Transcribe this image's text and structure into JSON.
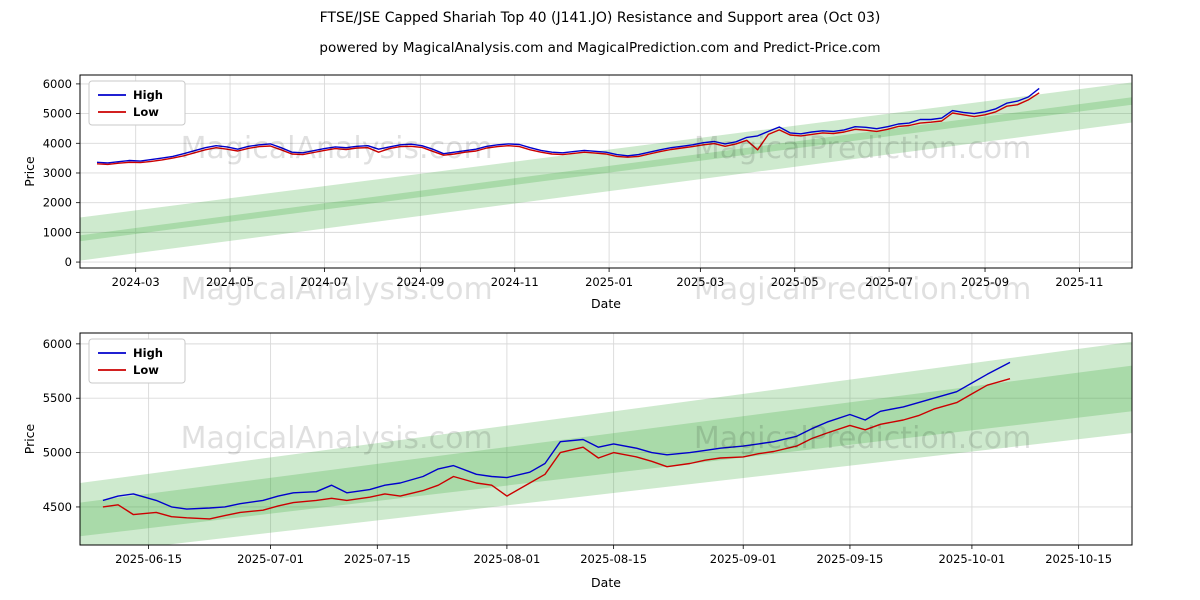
{
  "header": {
    "title": "FTSE/JSE Capped Shariah Top 40  (J141.JO) Resistance and Support area (Oct 03)",
    "subtitle": "powered by MagicalAnalysis.com and MagicalPrediction.com and Predict-Price.com"
  },
  "watermarks": {
    "text_a": "MagicalAnalysis.com",
    "text_b": "MagicalPrediction.com"
  },
  "colors": {
    "high_line": "#0000cc",
    "low_line": "#cc0000",
    "band_green": "rgba(60,170,60,0.25)",
    "grid": "#d9d9d9"
  },
  "chart_data": [
    {
      "type": "line",
      "title": "FTSE/JSE Capped Shariah Top 40  (J141.JO) Resistance and Support area (Oct 03)",
      "xlabel": "Date",
      "ylabel": "Price",
      "grid": true,
      "legend": {
        "position": "upper left",
        "entries": [
          "High",
          "Low"
        ]
      },
      "x_range": [
        "2024-01-25",
        "2025-12-05"
      ],
      "y_range": [
        -200,
        6300
      ],
      "x_ticks": {
        "dates": [
          "2024-03-01",
          "2024-05-01",
          "2024-07-01",
          "2024-09-01",
          "2024-11-01",
          "2025-01-01",
          "2025-03-01",
          "2025-05-01",
          "2025-07-01",
          "2025-09-01",
          "2025-11-01"
        ],
        "labels": [
          "2024-03",
          "2024-05",
          "2024-07",
          "2024-09",
          "2024-11",
          "2025-01",
          "2025-03",
          "2025-05",
          "2025-07",
          "2025-09",
          "2025-11"
        ]
      },
      "y_ticks": [
        0,
        1000,
        2000,
        3000,
        4000,
        5000,
        6000
      ],
      "dates": [
        "2024-02-05",
        "2024-02-12",
        "2024-02-19",
        "2024-02-26",
        "2024-03-04",
        "2024-03-11",
        "2024-03-18",
        "2024-03-25",
        "2024-04-01",
        "2024-04-08",
        "2024-04-15",
        "2024-04-22",
        "2024-04-29",
        "2024-05-06",
        "2024-05-13",
        "2024-05-20",
        "2024-05-27",
        "2024-06-03",
        "2024-06-10",
        "2024-06-17",
        "2024-06-24",
        "2024-07-01",
        "2024-07-08",
        "2024-07-15",
        "2024-07-22",
        "2024-07-29",
        "2024-08-05",
        "2024-08-12",
        "2024-08-19",
        "2024-08-26",
        "2024-09-02",
        "2024-09-09",
        "2024-09-16",
        "2024-09-23",
        "2024-09-30",
        "2024-10-07",
        "2024-10-14",
        "2024-10-21",
        "2024-10-28",
        "2024-11-04",
        "2024-11-11",
        "2024-11-18",
        "2024-11-25",
        "2024-12-02",
        "2024-12-09",
        "2024-12-16",
        "2024-12-23",
        "2024-12-30",
        "2025-01-06",
        "2025-01-13",
        "2025-01-20",
        "2025-01-27",
        "2025-02-03",
        "2025-02-10",
        "2025-02-17",
        "2025-02-24",
        "2025-03-03",
        "2025-03-10",
        "2025-03-17",
        "2025-03-24",
        "2025-03-31",
        "2025-04-07",
        "2025-04-14",
        "2025-04-21",
        "2025-04-28",
        "2025-05-05",
        "2025-05-12",
        "2025-05-19",
        "2025-05-26",
        "2025-06-02",
        "2025-06-09",
        "2025-06-16",
        "2025-06-23",
        "2025-06-30",
        "2025-07-07",
        "2025-07-14",
        "2025-07-21",
        "2025-07-28",
        "2025-08-04",
        "2025-08-11",
        "2025-08-18",
        "2025-08-25",
        "2025-09-01",
        "2025-09-08",
        "2025-09-15",
        "2025-09-22",
        "2025-09-29",
        "2025-10-06"
      ],
      "series": [
        {
          "name": "High",
          "color": "#0000cc",
          "values": [
            3360,
            3340,
            3380,
            3420,
            3400,
            3450,
            3500,
            3560,
            3650,
            3750,
            3850,
            3920,
            3880,
            3800,
            3900,
            3950,
            3980,
            3850,
            3700,
            3680,
            3750,
            3820,
            3880,
            3850,
            3900,
            3920,
            3800,
            3880,
            3950,
            3970,
            3920,
            3800,
            3650,
            3700,
            3750,
            3800,
            3900,
            3950,
            3980,
            3960,
            3850,
            3760,
            3700,
            3680,
            3720,
            3760,
            3730,
            3700,
            3620,
            3580,
            3620,
            3700,
            3780,
            3850,
            3900,
            3950,
            4020,
            4060,
            3980,
            4050,
            4200,
            4250,
            4400,
            4550,
            4350,
            4320,
            4380,
            4420,
            4400,
            4450,
            4560,
            4540,
            4490,
            4560,
            4650,
            4680,
            4800,
            4800,
            4850,
            5100,
            5040,
            5000,
            5060,
            5160,
            5350,
            5420,
            5560,
            5850
          ]
        },
        {
          "name": "Low",
          "color": "#cc0000",
          "values": [
            3310,
            3290,
            3330,
            3360,
            3350,
            3390,
            3440,
            3500,
            3580,
            3680,
            3780,
            3850,
            3800,
            3740,
            3830,
            3890,
            3910,
            3780,
            3640,
            3620,
            3690,
            3760,
            3820,
            3790,
            3840,
            3850,
            3700,
            3820,
            3890,
            3900,
            3860,
            3730,
            3600,
            3640,
            3700,
            3740,
            3840,
            3890,
            3920,
            3890,
            3780,
            3700,
            3640,
            3620,
            3660,
            3700,
            3670,
            3640,
            3560,
            3530,
            3560,
            3640,
            3720,
            3790,
            3840,
            3890,
            3950,
            3990,
            3900,
            3980,
            4100,
            3780,
            4300,
            4450,
            4280,
            4250,
            4300,
            4350,
            4330,
            4380,
            4470,
            4440,
            4400,
            4470,
            4570,
            4600,
            4680,
            4710,
            4750,
            5020,
            4960,
            4900,
            4960,
            5060,
            5250,
            5300,
            5460,
            5700
          ]
        }
      ],
      "bands": [
        {
          "name": "resistance-area",
          "color": "rgba(60,170,60,0.25)",
          "dates": [
            "2024-01-25",
            "2025-12-05"
          ],
          "lower": [
            700,
            5300
          ],
          "upper": [
            1500,
            6050
          ]
        },
        {
          "name": "support-area",
          "color": "rgba(60,170,60,0.25)",
          "dates": [
            "2024-01-25",
            "2025-12-05"
          ],
          "lower": [
            50,
            4700
          ],
          "upper": [
            900,
            5550
          ]
        }
      ]
    },
    {
      "type": "line",
      "title": "",
      "xlabel": "Date",
      "ylabel": "Price",
      "grid": true,
      "legend": {
        "position": "upper left",
        "entries": [
          "High",
          "Low"
        ]
      },
      "x_range": [
        "2025-06-06",
        "2025-10-22"
      ],
      "y_range": [
        4150,
        6100
      ],
      "x_ticks": {
        "dates": [
          "2025-06-15",
          "2025-07-01",
          "2025-07-15",
          "2025-08-01",
          "2025-08-15",
          "2025-09-01",
          "2025-09-15",
          "2025-10-01",
          "2025-10-15"
        ],
        "labels": [
          "2025-06-15",
          "2025-07-01",
          "2025-07-15",
          "2025-08-01",
          "2025-08-15",
          "2025-09-01",
          "2025-09-15",
          "2025-10-01",
          "2025-10-15"
        ]
      },
      "y_ticks": [
        4500,
        5000,
        5500,
        6000
      ],
      "dates": [
        "2025-06-09",
        "2025-06-11",
        "2025-06-13",
        "2025-06-16",
        "2025-06-18",
        "2025-06-20",
        "2025-06-23",
        "2025-06-25",
        "2025-06-27",
        "2025-06-30",
        "2025-07-02",
        "2025-07-04",
        "2025-07-07",
        "2025-07-09",
        "2025-07-11",
        "2025-07-14",
        "2025-07-16",
        "2025-07-18",
        "2025-07-21",
        "2025-07-23",
        "2025-07-25",
        "2025-07-28",
        "2025-07-30",
        "2025-08-01",
        "2025-08-04",
        "2025-08-06",
        "2025-08-08",
        "2025-08-11",
        "2025-08-13",
        "2025-08-15",
        "2025-08-18",
        "2025-08-20",
        "2025-08-22",
        "2025-08-25",
        "2025-08-27",
        "2025-08-29",
        "2025-09-01",
        "2025-09-03",
        "2025-09-05",
        "2025-09-08",
        "2025-09-10",
        "2025-09-12",
        "2025-09-15",
        "2025-09-17",
        "2025-09-19",
        "2025-09-22",
        "2025-09-24",
        "2025-09-26",
        "2025-09-29",
        "2025-10-01",
        "2025-10-03",
        "2025-10-06"
      ],
      "series": [
        {
          "name": "High",
          "color": "#0000cc",
          "values": [
            4560,
            4600,
            4620,
            4560,
            4500,
            4480,
            4490,
            4500,
            4530,
            4560,
            4600,
            4630,
            4640,
            4700,
            4630,
            4660,
            4700,
            4720,
            4780,
            4850,
            4880,
            4800,
            4780,
            4770,
            4820,
            4900,
            5100,
            5120,
            5050,
            5080,
            5040,
            5000,
            4980,
            5000,
            5020,
            5040,
            5060,
            5080,
            5100,
            5150,
            5220,
            5280,
            5350,
            5300,
            5380,
            5420,
            5460,
            5500,
            5560,
            5640,
            5720,
            5830
          ]
        },
        {
          "name": "Low",
          "color": "#cc0000",
          "values": [
            4500,
            4520,
            4430,
            4450,
            4410,
            4400,
            4390,
            4420,
            4450,
            4470,
            4510,
            4540,
            4560,
            4580,
            4560,
            4590,
            4620,
            4600,
            4650,
            4700,
            4780,
            4720,
            4700,
            4600,
            4720,
            4800,
            5000,
            5050,
            4950,
            5000,
            4960,
            4920,
            4870,
            4900,
            4930,
            4950,
            4960,
            4990,
            5010,
            5060,
            5130,
            5180,
            5250,
            5210,
            5260,
            5300,
            5340,
            5400,
            5460,
            5540,
            5620,
            5680
          ]
        }
      ],
      "bands": [
        {
          "name": "resistance-area",
          "color": "rgba(60,170,60,0.25)",
          "dates": [
            "2025-06-06",
            "2025-10-22"
          ],
          "lower": [
            4230,
            5380
          ],
          "upper": [
            4720,
            6020
          ]
        },
        {
          "name": "support-area",
          "color": "rgba(60,170,60,0.25)",
          "dates": [
            "2025-06-06",
            "2025-10-22"
          ],
          "lower": [
            4060,
            5180
          ],
          "upper": [
            4540,
            5800
          ]
        }
      ]
    }
  ]
}
